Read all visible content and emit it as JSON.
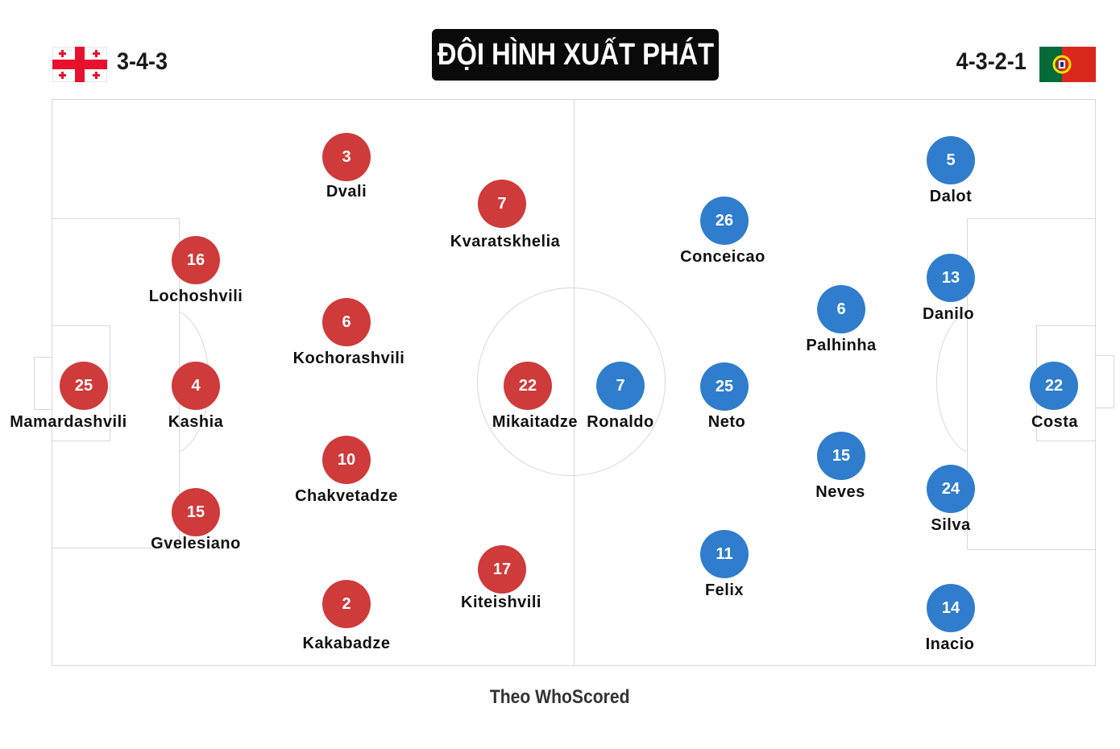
{
  "header": {
    "title": "ĐỘI HÌNH XUẤT PHÁT",
    "home_formation": "3-4-3",
    "away_formation": "4-3-2-1",
    "home_flag_icon": "georgia-flag-icon",
    "away_flag_icon": "portugal-flag-icon"
  },
  "colors": {
    "home": "#cf3a3a",
    "away": "#2f7dcc",
    "pitch_lines": "#d8d8d8"
  },
  "home": {
    "players": [
      {
        "number": "25",
        "name": "Mamardashvili"
      },
      {
        "number": "16",
        "name": "Lochoshvili"
      },
      {
        "number": "4",
        "name": "Kashia"
      },
      {
        "number": "15",
        "name": "Gvelesiano"
      },
      {
        "number": "3",
        "name": "Dvali"
      },
      {
        "number": "6",
        "name": "Kochorashvili"
      },
      {
        "number": "10",
        "name": "Chakvetadze"
      },
      {
        "number": "2",
        "name": "Kakabadze"
      },
      {
        "number": "7",
        "name": "Kvaratskhelia"
      },
      {
        "number": "22",
        "name": "Mikaitadze"
      },
      {
        "number": "17",
        "name": "Kiteishvili"
      }
    ]
  },
  "away": {
    "players": [
      {
        "number": "7",
        "name": "Ronaldo"
      },
      {
        "number": "26",
        "name": "Conceicao"
      },
      {
        "number": "25",
        "name": "Neto"
      },
      {
        "number": "11",
        "name": "Felix"
      },
      {
        "number": "6",
        "name": "Palhinha"
      },
      {
        "number": "15",
        "name": "Neves"
      },
      {
        "number": "5",
        "name": "Dalot"
      },
      {
        "number": "13",
        "name": "Danilo"
      },
      {
        "number": "24",
        "name": "Silva"
      },
      {
        "number": "14",
        "name": "Inacio"
      },
      {
        "number": "22",
        "name": "Costa"
      }
    ]
  },
  "footer": {
    "source": "Theo WhoScored"
  }
}
